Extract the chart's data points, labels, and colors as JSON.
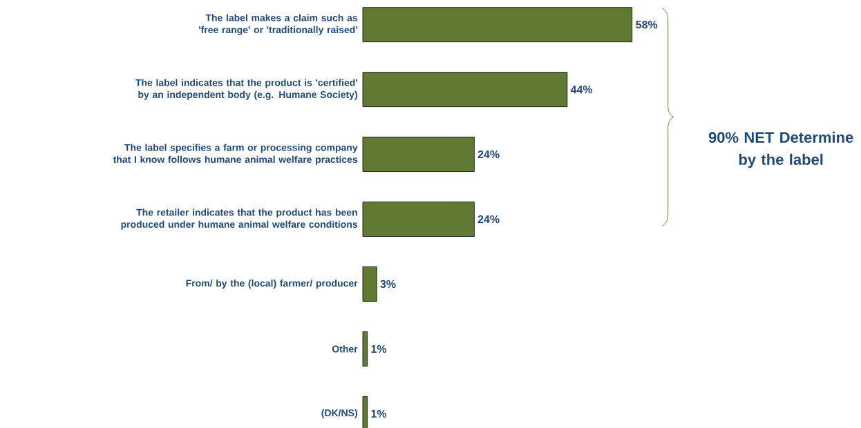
{
  "chart_data": {
    "type": "bar",
    "orientation": "horizontal",
    "categories": [
      "The label makes a claim such as 'free range' or 'traditionally raised'",
      "The label indicates that the product is 'certified' by an independent body (e.g. Humane Society)",
      "The label specifies a farm or processing company that I know follows humane animal welfare practices",
      "The retailer indicates that the product has been produced under humane animal welfare conditions",
      "From/ by the (local) farmer/ producer",
      "Other",
      "(DK/NS)"
    ],
    "values": [
      58,
      44,
      24,
      24,
      3,
      1,
      1
    ],
    "value_labels": [
      "58%",
      "44%",
      "24%",
      "24%",
      "3%",
      "1%",
      "1%"
    ],
    "color": "#607a33",
    "annotations": [
      "90% NET Determine by the label"
    ]
  }
}
